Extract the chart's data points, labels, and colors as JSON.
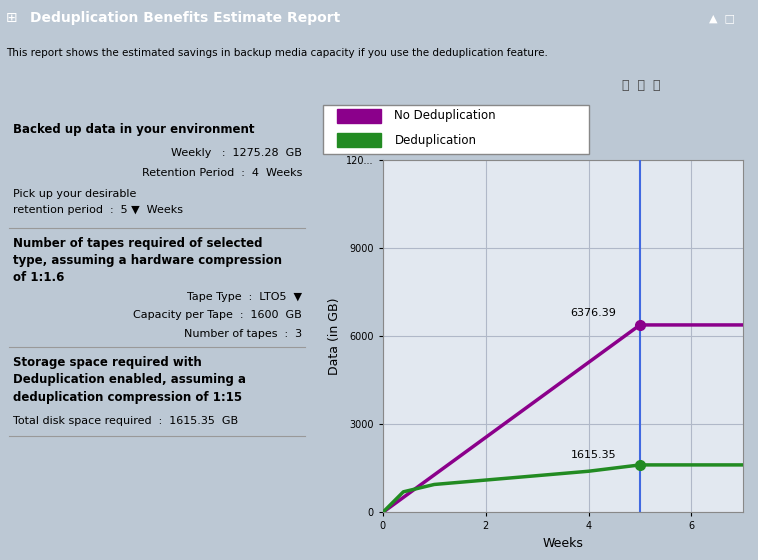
{
  "title": "Deduplication Benefits Estimate Report",
  "subtitle": "This report shows the estimated savings in backup media capacity if you use the deduplication feature.",
  "legend_no_dedup": "No Deduplication",
  "legend_dedup": "Deduplication",
  "xlabel": "Weeks",
  "ylabel": "Data (in GB)",
  "no_dedup_x": [
    0,
    1,
    2,
    3,
    4,
    5,
    7
  ],
  "no_dedup_y": [
    0,
    1275.28,
    2550.56,
    3825.84,
    5101.12,
    6376.39,
    6376.39
  ],
  "dedup_x": [
    0,
    0.4,
    1,
    2,
    3,
    4,
    5,
    7
  ],
  "dedup_y": [
    0,
    700,
    950,
    1100,
    1250,
    1400,
    1615.35,
    1615.35
  ],
  "marker_x": 5,
  "no_dedup_marker_y": 6376.39,
  "dedup_marker_y": 1615.35,
  "no_dedup_color": "#8B008B",
  "dedup_color": "#228B22",
  "vline_color": "#4169E1",
  "annotation_no_dedup": "6376.39",
  "annotation_dedup": "1615.35",
  "xlim": [
    0,
    7
  ],
  "ylim": [
    0,
    12000
  ],
  "yticks": [
    0,
    3000,
    6000,
    9000,
    12000
  ],
  "ytick_labels": [
    "0",
    "3000",
    "6000",
    "9000",
    "120..."
  ],
  "xticks": [
    0,
    2,
    4,
    6
  ],
  "bg_outer": "#BCC8D4",
  "bg_panel": "#D4DDE8",
  "plot_bg_color": "#E2E8F0",
  "grid_color": "#B0B8C8",
  "title_bg": "#1A3A5C",
  "title_fg": "#FFFFFF",
  "subtitle_bg": "#F5F5F5",
  "toolbar_bg": "#D8D8D8",
  "left_panel_bg": "#D4DDE8",
  "legend_bg": "#FFFFFF"
}
